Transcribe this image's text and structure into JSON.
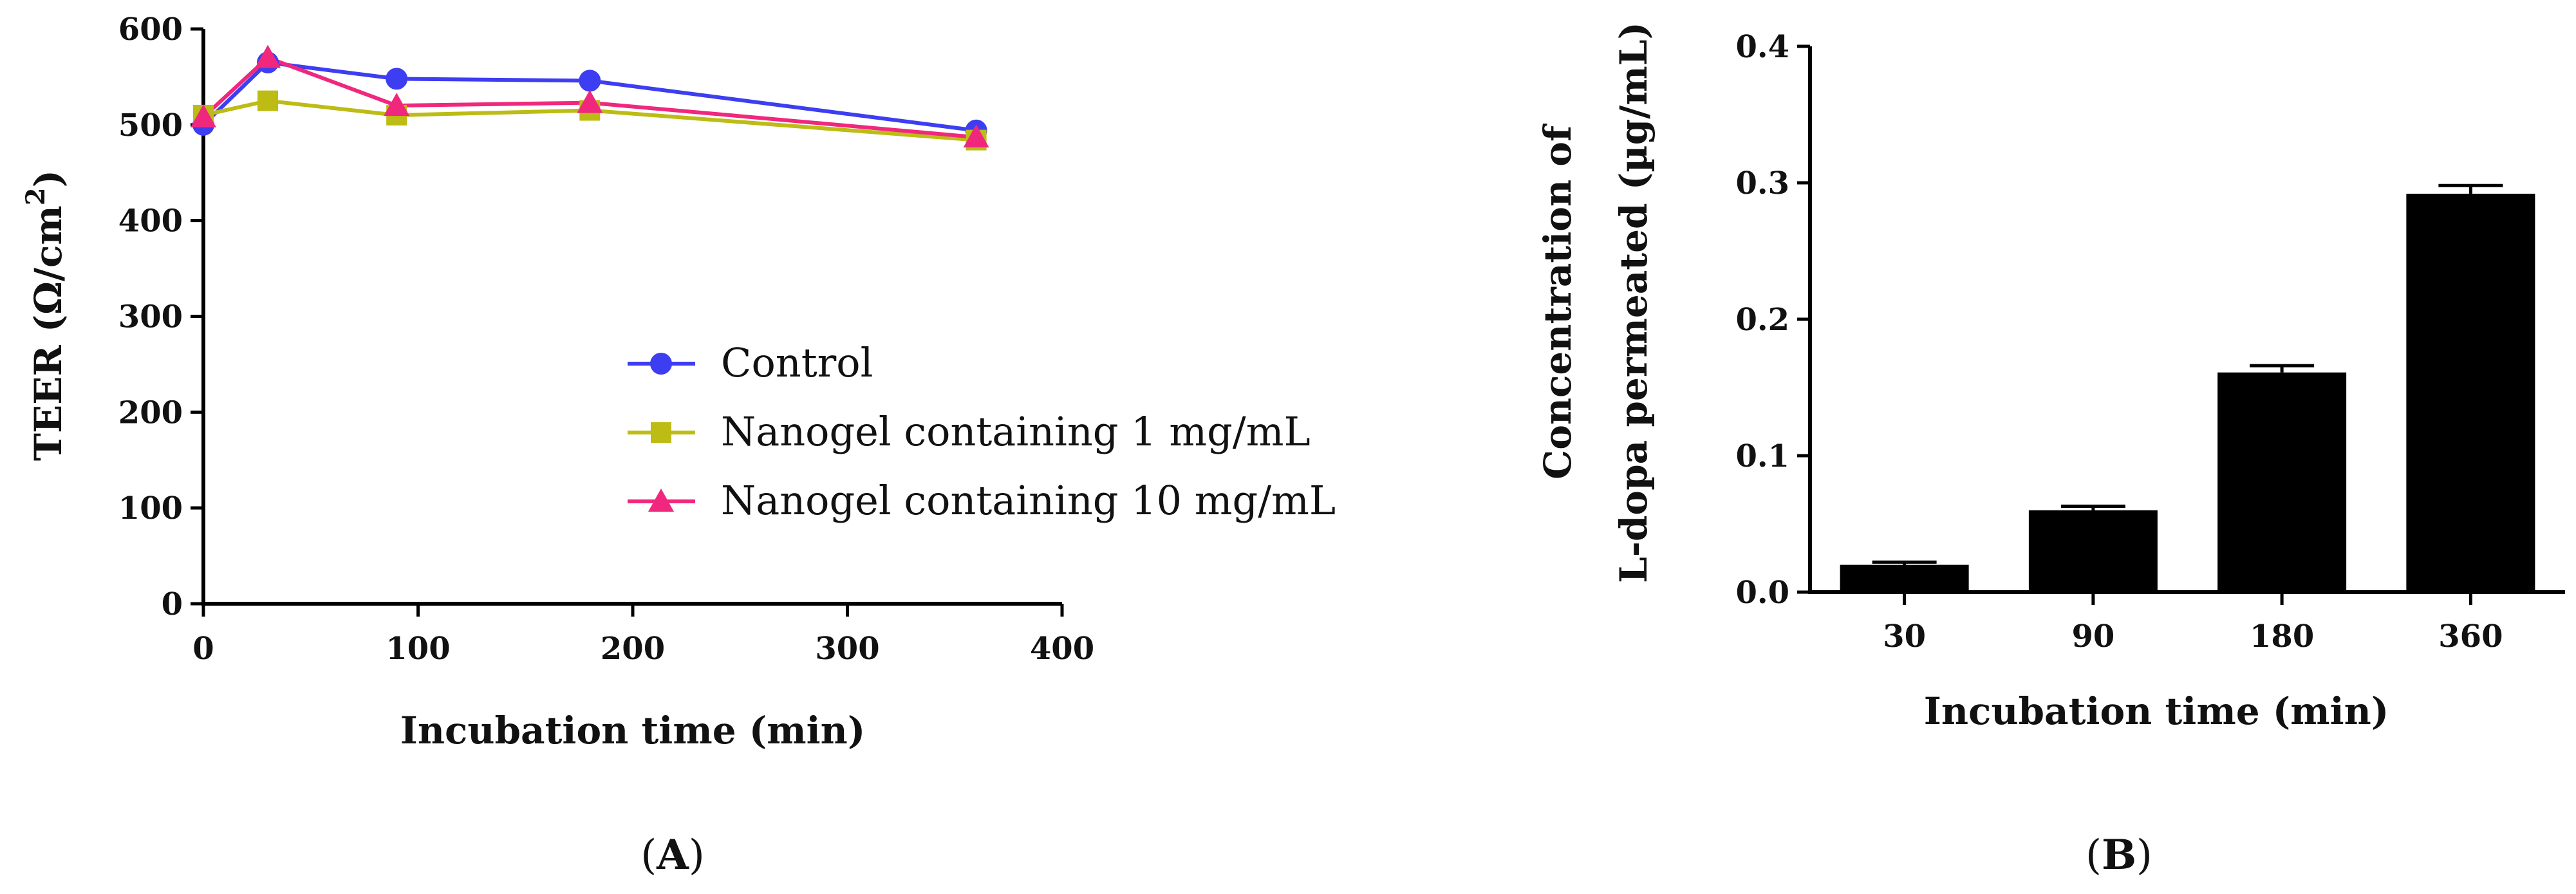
{
  "chart_data": [
    {
      "panel": "A",
      "type": "line",
      "title": "",
      "xlabel": "Incubation time (min)",
      "ylabel_base": "TEER (Ω/cm",
      "ylabel_sup": "2",
      "ylabel_end": ")",
      "xlim": [
        0,
        400
      ],
      "ylim": [
        0,
        600
      ],
      "xticks": [
        "0",
        "100",
        "200",
        "300",
        "400"
      ],
      "yticks": [
        "0",
        "100",
        "200",
        "300",
        "400",
        "500",
        "600"
      ],
      "grid": false,
      "legend_position": "center-right",
      "series": [
        {
          "name": "Control",
          "color": "#3d3df2",
          "marker": "circle",
          "x": [
            0,
            30,
            90,
            180,
            360
          ],
          "y": [
            500,
            565,
            548,
            546,
            494
          ]
        },
        {
          "name": "Nanogel containing 1 mg/mL",
          "color": "#bcbc15",
          "marker": "square",
          "x": [
            0,
            30,
            90,
            180,
            360
          ],
          "y": [
            510,
            525,
            510,
            515,
            484
          ]
        },
        {
          "name": "Nanogel containing 10 mg/mL",
          "color": "#f0287d",
          "marker": "triangle",
          "x": [
            0,
            30,
            90,
            180,
            360
          ],
          "y": [
            508,
            570,
            520,
            523,
            487
          ]
        }
      ]
    },
    {
      "panel": "B",
      "type": "bar",
      "title": "",
      "xlabel": "Incubation time (min)",
      "ylabel_line1": "Concentration of",
      "ylabel_line2": "L-dopa permeated (µg/mL)",
      "categories": [
        "30",
        "90",
        "180",
        "360"
      ],
      "values": [
        0.02,
        0.06,
        0.161,
        0.292
      ],
      "errors": [
        0.002,
        0.003,
        0.005,
        0.006
      ],
      "ylim": [
        0,
        0.4
      ],
      "yticks": [
        "0.0",
        "0.1",
        "0.2",
        "0.3",
        "0.4"
      ],
      "bar_color": "#000000",
      "grid": false
    }
  ],
  "panel_labels": {
    "a_open": "(",
    "a_letter": "A",
    "a_close": ")",
    "b_open": "(",
    "b_letter": "B",
    "b_close": ")"
  }
}
